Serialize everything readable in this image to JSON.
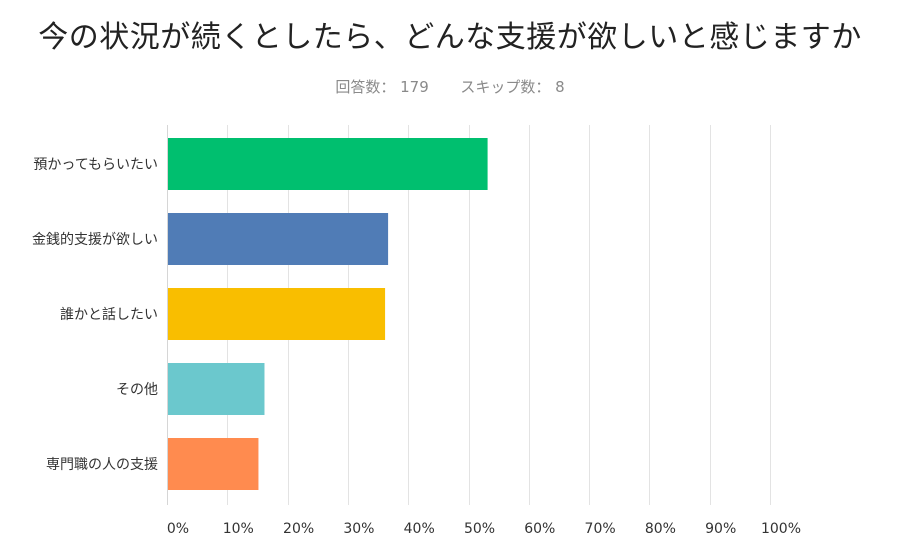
{
  "title": "今の状況が続くとしたら、どんな支援が欲しいと感じますか",
  "meta": {
    "answered_label": "回答数：",
    "answered_value": "179",
    "skipped_label": "スキップ数：",
    "skipped_value": "8"
  },
  "chart_data": {
    "type": "bar",
    "orientation": "horizontal",
    "categories": [
      "預かってもらいたい",
      "金銭的支援が欲しい",
      "誰かと話したい",
      "その他",
      "専門職の人の支援"
    ],
    "values": [
      53,
      36.5,
      36,
      16,
      15
    ],
    "xlim": [
      0,
      100
    ],
    "ticks": [
      "0%",
      "10%",
      "20%",
      "30%",
      "40%",
      "50%",
      "60%",
      "70%",
      "80%",
      "90%",
      "100%"
    ],
    "grid": true,
    "colors": [
      "#00BF6F",
      "#507CB6",
      "#F9BE00",
      "#6BC8CD",
      "#FF8B4F"
    ]
  }
}
